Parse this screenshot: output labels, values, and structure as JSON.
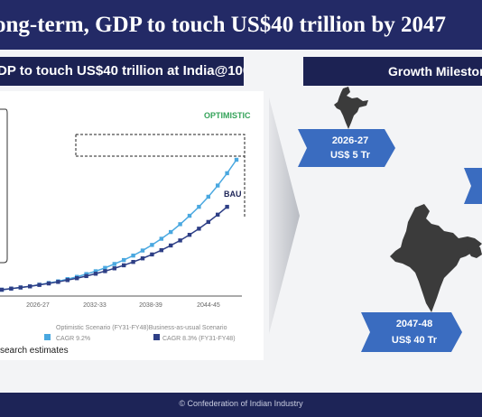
{
  "slide": {
    "title": "ong-term, GDP to touch US$40 trillion by 2047",
    "left_header": "DP to touch US$40 trillion at India@100",
    "right_header": "Growth Milestor",
    "source_note": "search estimates",
    "footer": "© Confederation of Indian Industry"
  },
  "chart_data": {
    "type": "line",
    "x_tick_labels": [
      "2026-27",
      "2032-33",
      "2038-39",
      "2044-45"
    ],
    "annotations": [
      "OPTIMISTIC",
      "BAU"
    ],
    "legend_caption": "Optimistic Scenario (FY31-FY48)Business-as-usual Scenario",
    "series": [
      {
        "name": "CAGR 9.2%",
        "color": "#4aa8e0",
        "values": [
          1.0,
          1.1,
          1.2,
          1.3,
          1.45,
          1.6,
          1.75,
          1.95,
          2.15,
          2.4,
          2.65,
          2.95,
          3.3,
          3.65,
          4.05,
          4.5,
          5.0,
          5.55,
          6.15,
          6.85,
          7.6,
          8.4,
          9.3,
          10.3,
          11.4,
          12.6
        ]
      },
      {
        "name": "CAGR 8.3% (FY31-FY48)",
        "color": "#2e3f86",
        "values": [
          1.0,
          1.1,
          1.2,
          1.3,
          1.43,
          1.56,
          1.7,
          1.86,
          2.03,
          2.22,
          2.43,
          2.66,
          2.91,
          3.18,
          3.48,
          3.8,
          4.15,
          4.53,
          4.95,
          5.4,
          5.9,
          6.45,
          7.05,
          7.7,
          8.4
        ]
      }
    ]
  },
  "milestones": [
    {
      "year": "2026-27",
      "value": "US$ 5 Tr"
    },
    {
      "year": "2047-48",
      "value": "US$ 40 Tr"
    }
  ]
}
